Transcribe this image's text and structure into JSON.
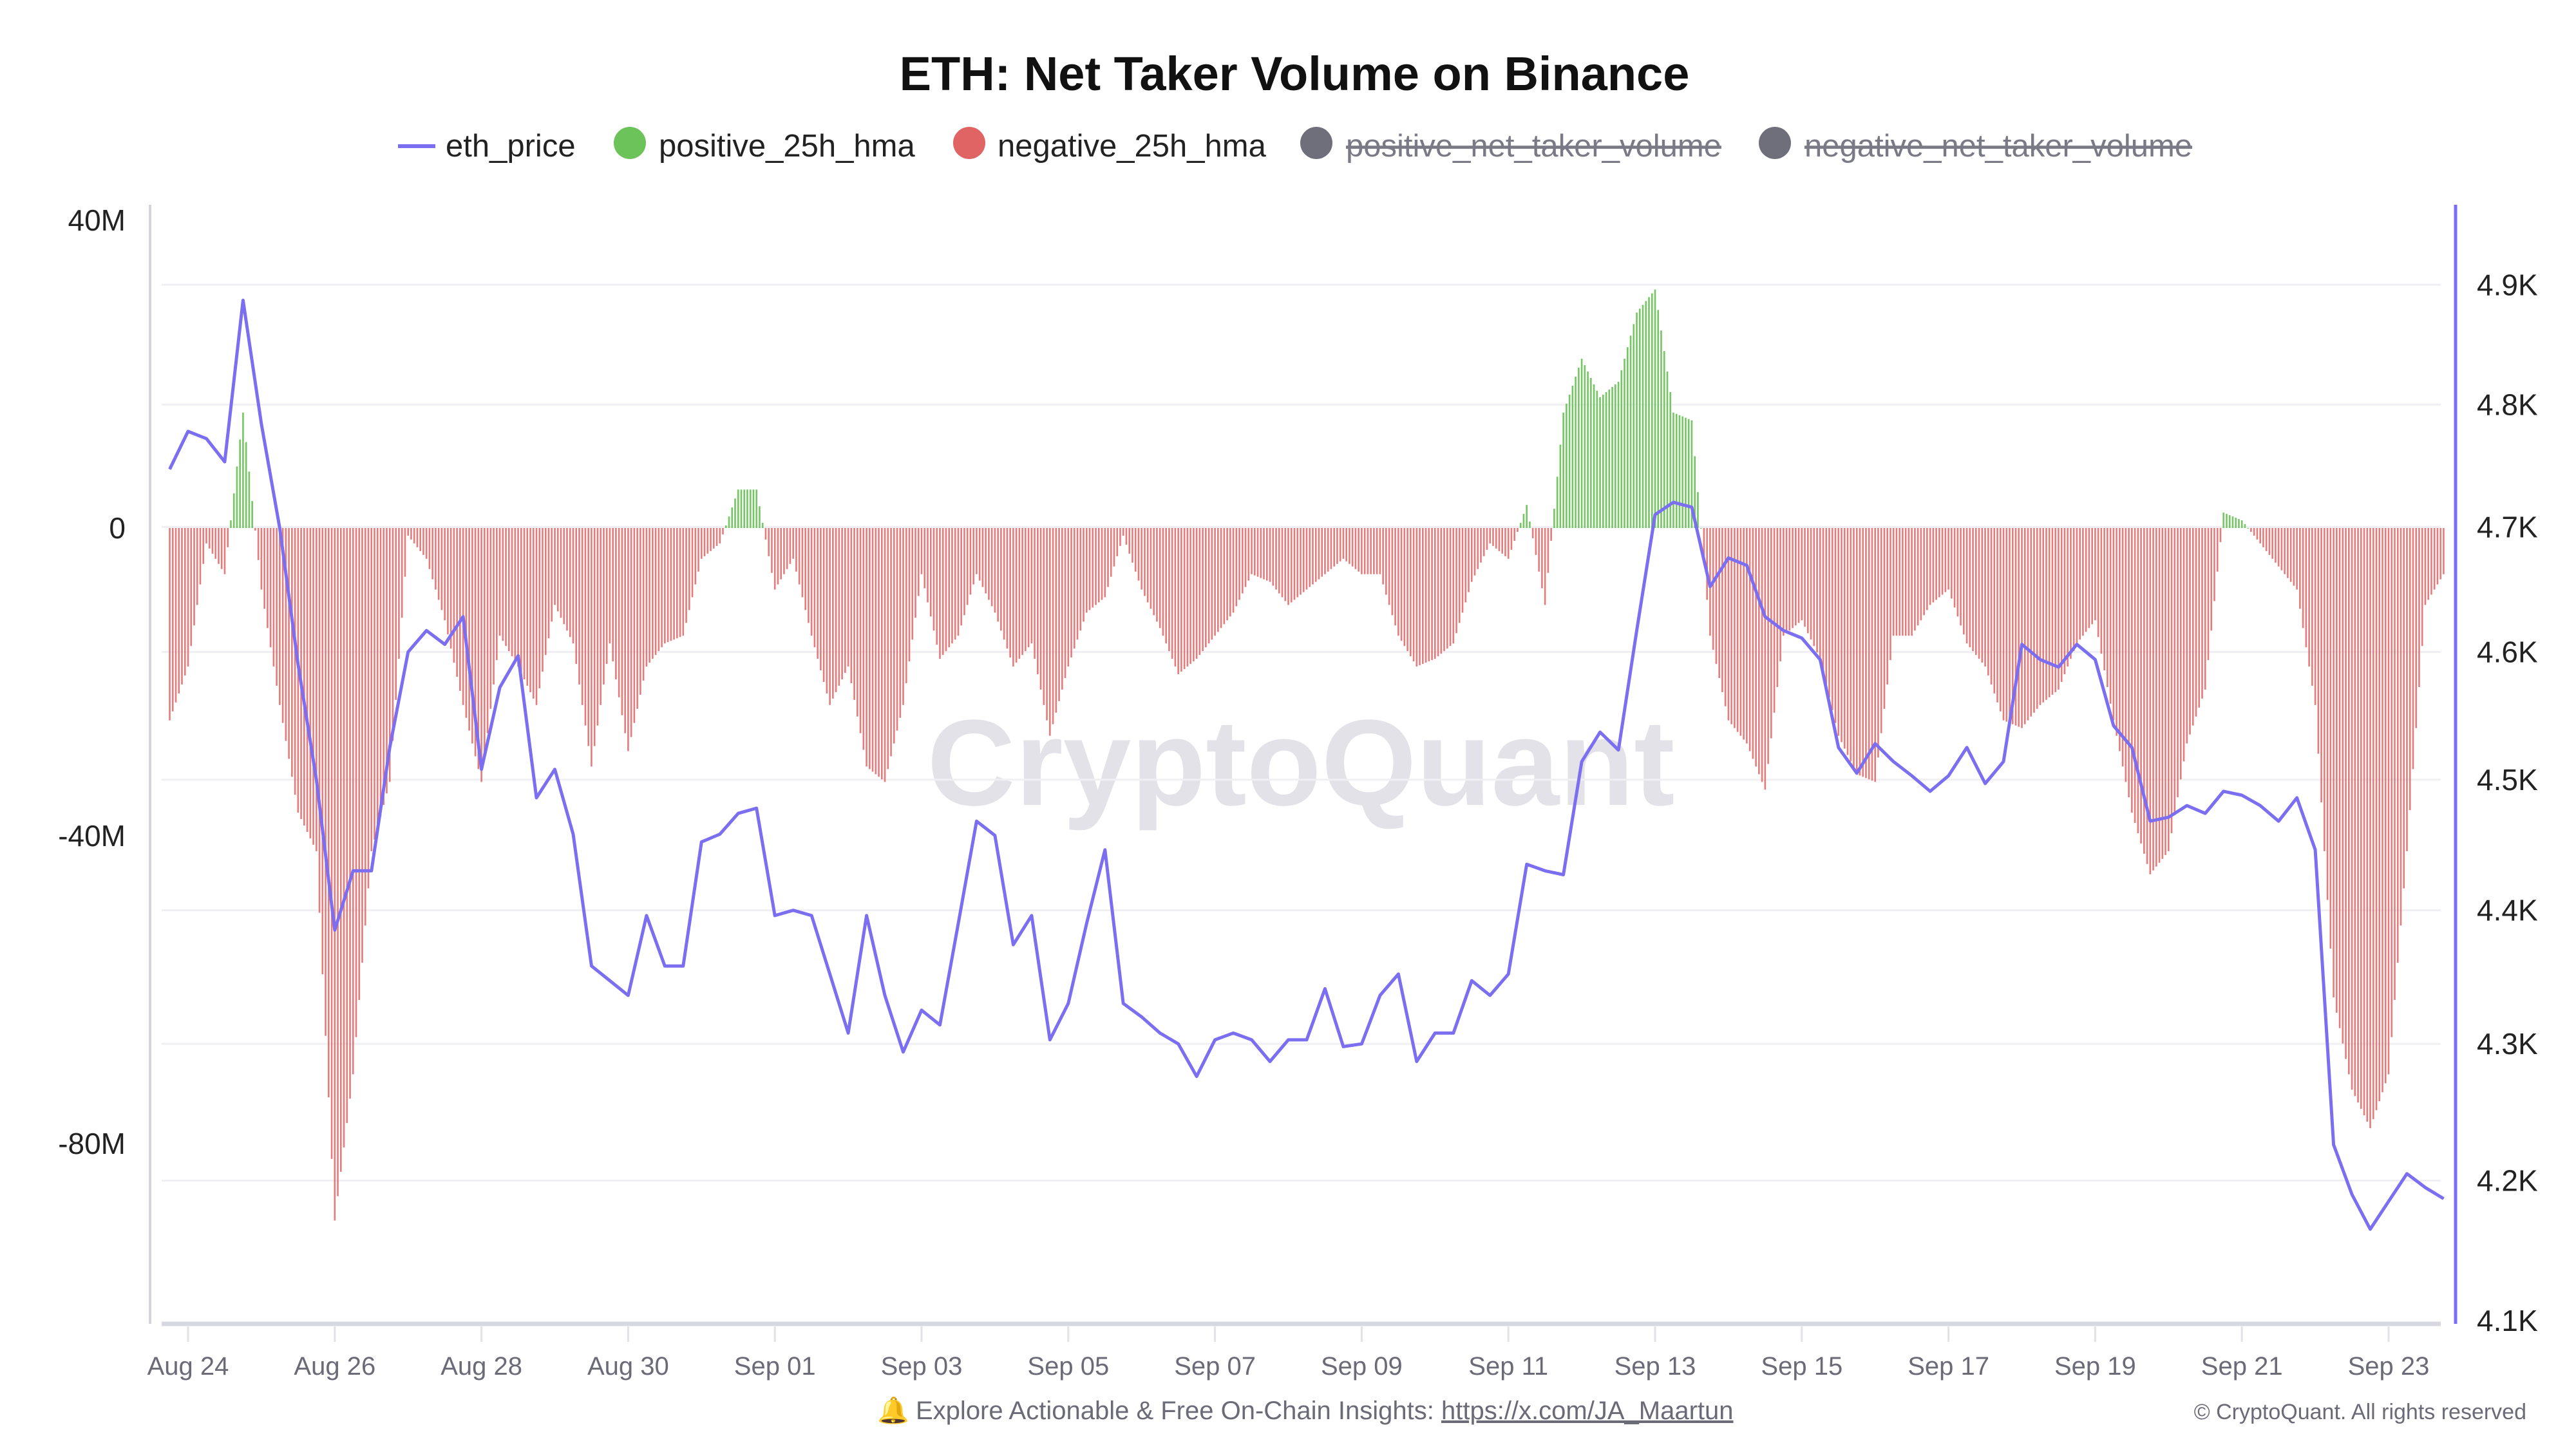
{
  "chart_data": {
    "type": "bar+line",
    "title": "ETH: Net Taker Volume on Binance",
    "legend": [
      {
        "name": "eth_price",
        "color": "#7b6ef0",
        "marker": "line",
        "visible": true
      },
      {
        "name": "positive_25h_hma",
        "color": "#6cc35a",
        "marker": "circle",
        "visible": true
      },
      {
        "name": "negative_25h_hma",
        "color": "#e06464",
        "marker": "circle",
        "visible": true
      },
      {
        "name": "positive_net_taker_volume",
        "color": "#6f6f7c",
        "marker": "circle",
        "visible": false
      },
      {
        "name": "negative_net_taker_volume",
        "color": "#6f6f7c",
        "marker": "circle",
        "visible": false
      }
    ],
    "legend_position": "top-center",
    "x": {
      "tick_labels": [
        "Aug 24",
        "Aug 26",
        "Aug 28",
        "Aug 30",
        "Sep 01",
        "Sep 03",
        "Sep 05",
        "Sep 07",
        "Sep 09",
        "Sep 11",
        "Sep 13",
        "Sep 15",
        "Sep 17",
        "Sep 19",
        "Sep 21",
        "Sep 23"
      ],
      "start": "Aug 23 18:00",
      "interval_hours": 6
    },
    "y_left": {
      "tick_labels": [
        "40M",
        "0",
        "-40M",
        "-80M"
      ],
      "tick_values": [
        40,
        0,
        -40,
        -80
      ],
      "unit": "M",
      "range": [
        -104,
        42
      ]
    },
    "y_right": {
      "tick_labels": [
        "4.9K",
        "4.8K",
        "4.7K",
        "4.6K",
        "4.5K",
        "4.4K",
        "4.3K",
        "4.2K",
        "4.1K"
      ],
      "tick_values": [
        4900,
        4800,
        4700,
        4600,
        4500,
        4400,
        4300,
        4200,
        4100
      ],
      "scale": "log",
      "range": [
        4100,
        4960
      ]
    },
    "grid": true,
    "series": [
      {
        "name": "eth_price",
        "axis": "right",
        "type": "line",
        "values": [
          4747,
          4778,
          4772,
          4753,
          4887,
          4784,
          4699,
          4590,
          4500,
          4385,
          4430,
          4430,
          4525,
          4600,
          4617,
          4606,
          4628,
          4508,
          4572,
          4597,
          4486,
          4508,
          4458,
          4358,
          4347,
          4336,
          4396,
          4358,
          4358,
          4452,
          4458,
          4474,
          4478,
          4396,
          4400,
          4396,
          4352,
          4308,
          4396,
          4336,
          4294,
          4325,
          4314,
          4390,
          4468,
          4457,
          4374,
          4396,
          4303,
          4330,
          4390,
          4446,
          4330,
          4320,
          4308,
          4300,
          4276,
          4303,
          4308,
          4303,
          4287,
          4303,
          4303,
          4341,
          4298,
          4300,
          4336,
          4352,
          4287,
          4308,
          4308,
          4347,
          4336,
          4352,
          4435,
          4430,
          4427,
          4514,
          4537,
          4523,
          4617,
          4710,
          4720,
          4716,
          4652,
          4675,
          4669,
          4628,
          4617,
          4611,
          4594,
          4525,
          4505,
          4528,
          4514,
          4503,
          4491,
          4503,
          4525,
          4497,
          4514,
          4606,
          4594,
          4588,
          4606,
          4594,
          4542,
          4525,
          4468,
          4471,
          4480,
          4474,
          4491,
          4488,
          4480,
          4468,
          4486,
          4446,
          4226,
          4190,
          4165,
          4185,
          4205,
          4195,
          4187
        ]
      },
      {
        "name": "net_taker_volume_25h_hma",
        "axis": "left",
        "type": "bar",
        "unit": "M",
        "positive_series": "positive_25h_hma",
        "negative_series": "negative_25h_hma",
        "values": [
          -25,
          -18,
          -2,
          -6,
          15,
          -8,
          -23,
          -37,
          -42,
          -90,
          -71,
          -42,
          -33,
          -1,
          -4,
          -12,
          -23,
          -33,
          -14,
          -18,
          -23,
          -10,
          -15,
          -31,
          -15,
          -29,
          -18,
          -15,
          -14,
          -4,
          -2,
          5,
          5,
          -8,
          -4,
          -14,
          -23,
          -18,
          -31,
          -33,
          -23,
          -6,
          -17,
          -14,
          -6,
          -11,
          -18,
          -15,
          -27,
          -18,
          -11,
          -9,
          -1,
          -8,
          -13,
          -19,
          -17,
          -14,
          -11,
          -6,
          -7,
          -10,
          -8,
          -6,
          -4,
          -6,
          -6,
          -14,
          -18,
          -17,
          -15,
          -7,
          -2,
          -4,
          3,
          -10,
          15,
          22,
          17,
          19,
          28,
          31,
          15,
          14,
          -14,
          -25,
          -28,
          -34,
          -14,
          -12,
          -17,
          -27,
          -32,
          -33,
          -14,
          -14,
          -10,
          -8,
          -15,
          -18,
          -25,
          -26,
          -23,
          -21,
          -15,
          -12,
          -25,
          -37,
          -45,
          -42,
          -28,
          -21,
          2,
          1,
          -2,
          -5,
          -8,
          -23,
          -61,
          -73,
          -78,
          -71,
          -42,
          -10,
          -6
        ]
      }
    ]
  },
  "watermark": "CryptoQuant",
  "footer": {
    "bell_icon": "bell-icon",
    "text": "Explore Actionable & Free On-Chain Insights: ",
    "link": "https://x.com/JA_Maartun",
    "copyright": "© CryptoQuant. All rights reserved"
  }
}
